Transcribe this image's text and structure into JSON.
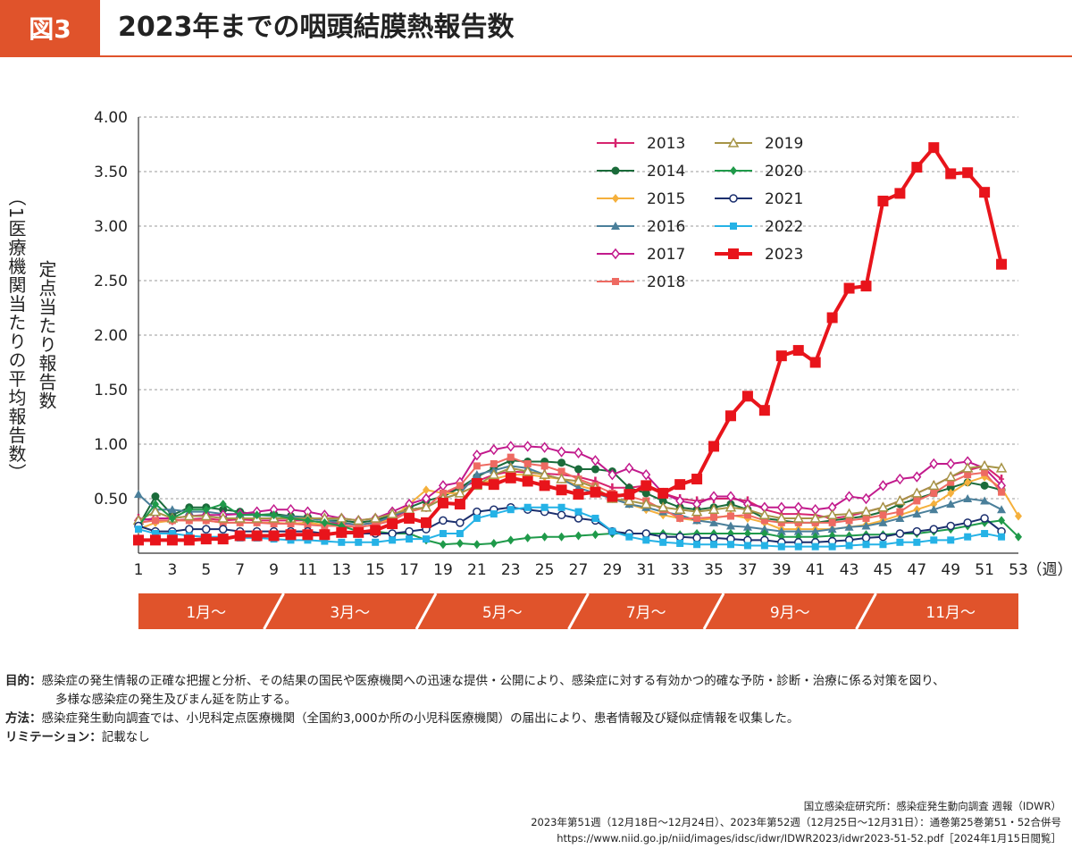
{
  "header": {
    "badge": "図3",
    "title": "2023年までの咽頭結膜熱報告数"
  },
  "colors": {
    "accent": "#e0532b"
  },
  "chart_data": {
    "type": "line",
    "ylabel_outer": "（1医療機関当たりの平均報告数）",
    "ylabel_inner": "定点当たり報告数",
    "x_unit": "（週）",
    "ylim": [
      0,
      4
    ],
    "yticks": [
      "4.00",
      "3.50",
      "3.00",
      "2.50",
      "2.00",
      "1.50",
      "1.00",
      "0.50"
    ],
    "yticks_values": [
      4,
      3.5,
      3,
      2.5,
      2,
      1.5,
      1,
      0.5
    ],
    "xticks": [
      1,
      3,
      5,
      7,
      9,
      11,
      13,
      15,
      17,
      19,
      21,
      23,
      25,
      27,
      29,
      31,
      33,
      35,
      37,
      39,
      41,
      43,
      45,
      47,
      49,
      51,
      53
    ],
    "xlim": [
      1,
      53
    ],
    "months": [
      "1月〜",
      "3月〜",
      "5月〜",
      "7月〜",
      "9月〜",
      "11月〜"
    ],
    "grid": true,
    "legend_position": "top-right",
    "series": [
      {
        "name": "2013",
        "color": "#d6246e",
        "marker": "plus",
        "values": [
          0.32,
          0.3,
          0.3,
          0.31,
          0.32,
          0.3,
          0.31,
          0.3,
          0.3,
          0.3,
          0.3,
          0.28,
          0.27,
          0.26,
          0.28,
          0.32,
          0.4,
          0.42,
          0.55,
          0.6,
          0.66,
          0.72,
          0.75,
          0.74,
          0.73,
          0.72,
          0.7,
          0.66,
          0.6,
          0.6,
          0.62,
          0.55,
          0.5,
          0.48,
          0.5,
          0.5,
          0.48,
          0.4,
          0.36,
          0.36,
          0.35,
          0.32,
          0.34,
          0.38,
          0.42,
          0.48,
          0.55,
          0.62,
          0.7,
          0.76,
          0.8,
          0.68
        ]
      },
      {
        "name": "2014",
        "color": "#1a6b3a",
        "marker": "dot",
        "values": [
          0.25,
          0.52,
          0.35,
          0.42,
          0.42,
          0.4,
          0.38,
          0.35,
          0.36,
          0.34,
          0.33,
          0.3,
          0.3,
          0.28,
          0.3,
          0.35,
          0.42,
          0.48,
          0.52,
          0.6,
          0.7,
          0.78,
          0.85,
          0.84,
          0.84,
          0.83,
          0.77,
          0.77,
          0.75,
          0.6,
          0.55,
          0.48,
          0.42,
          0.4,
          0.42,
          0.45,
          0.4,
          0.32,
          0.3,
          0.28,
          0.28,
          0.3,
          0.32,
          0.34,
          0.38,
          0.45,
          0.5,
          0.55,
          0.6,
          0.65,
          0.62,
          0.58
        ]
      },
      {
        "name": "2015",
        "color": "#f5b03c",
        "marker": "diamond",
        "values": [
          0.22,
          0.28,
          0.3,
          0.3,
          0.3,
          0.28,
          0.28,
          0.28,
          0.28,
          0.27,
          0.28,
          0.26,
          0.25,
          0.24,
          0.26,
          0.32,
          0.45,
          0.58,
          0.55,
          0.55,
          0.62,
          0.68,
          0.72,
          0.72,
          0.7,
          0.68,
          0.62,
          0.58,
          0.5,
          0.45,
          0.4,
          0.35,
          0.32,
          0.3,
          0.32,
          0.35,
          0.32,
          0.28,
          0.22,
          0.22,
          0.22,
          0.22,
          0.24,
          0.26,
          0.3,
          0.35,
          0.4,
          0.45,
          0.55,
          0.65,
          0.7,
          0.6,
          0.34
        ]
      },
      {
        "name": "2016",
        "color": "#4a7f9a",
        "marker": "triangle",
        "values": [
          0.54,
          0.4,
          0.4,
          0.38,
          0.38,
          0.36,
          0.36,
          0.35,
          0.34,
          0.34,
          0.32,
          0.3,
          0.28,
          0.26,
          0.28,
          0.34,
          0.4,
          0.42,
          0.5,
          0.55,
          0.72,
          0.76,
          0.8,
          0.78,
          0.72,
          0.68,
          0.6,
          0.55,
          0.5,
          0.45,
          0.42,
          0.38,
          0.35,
          0.3,
          0.28,
          0.25,
          0.24,
          0.22,
          0.2,
          0.2,
          0.2,
          0.22,
          0.24,
          0.25,
          0.28,
          0.32,
          0.36,
          0.4,
          0.45,
          0.5,
          0.48,
          0.4
        ]
      },
      {
        "name": "2017",
        "color": "#c21a8c",
        "marker": "open-diamond",
        "values": [
          0.3,
          0.32,
          0.32,
          0.34,
          0.35,
          0.35,
          0.36,
          0.38,
          0.4,
          0.4,
          0.38,
          0.35,
          0.32,
          0.3,
          0.32,
          0.38,
          0.45,
          0.5,
          0.62,
          0.65,
          0.9,
          0.95,
          0.98,
          0.98,
          0.97,
          0.93,
          0.92,
          0.85,
          0.72,
          0.78,
          0.72,
          0.55,
          0.48,
          0.45,
          0.52,
          0.52,
          0.45,
          0.42,
          0.42,
          0.42,
          0.4,
          0.42,
          0.52,
          0.5,
          0.62,
          0.68,
          0.7,
          0.82,
          0.82,
          0.84,
          0.78,
          0.62
        ]
      },
      {
        "name": "2018",
        "color": "#ee6a62",
        "marker": "square",
        "values": [
          0.28,
          0.3,
          0.3,
          0.3,
          0.3,
          0.28,
          0.28,
          0.28,
          0.27,
          0.27,
          0.26,
          0.25,
          0.25,
          0.24,
          0.26,
          0.3,
          0.38,
          0.42,
          0.55,
          0.62,
          0.8,
          0.82,
          0.88,
          0.82,
          0.8,
          0.75,
          0.68,
          0.62,
          0.55,
          0.52,
          0.48,
          0.4,
          0.32,
          0.32,
          0.33,
          0.34,
          0.35,
          0.3,
          0.28,
          0.28,
          0.28,
          0.28,
          0.3,
          0.32,
          0.35,
          0.38,
          0.48,
          0.55,
          0.65,
          0.72,
          0.74,
          0.56
        ]
      },
      {
        "name": "2019",
        "color": "#a69446",
        "marker": "open-triangle",
        "values": [
          0.3,
          0.38,
          0.32,
          0.34,
          0.34,
          0.32,
          0.32,
          0.32,
          0.32,
          0.32,
          0.32,
          0.32,
          0.32,
          0.3,
          0.32,
          0.36,
          0.4,
          0.42,
          0.5,
          0.55,
          0.62,
          0.72,
          0.78,
          0.75,
          0.72,
          0.68,
          0.66,
          0.6,
          0.5,
          0.48,
          0.45,
          0.42,
          0.4,
          0.38,
          0.4,
          0.42,
          0.4,
          0.35,
          0.32,
          0.32,
          0.32,
          0.35,
          0.36,
          0.38,
          0.42,
          0.48,
          0.55,
          0.62,
          0.7,
          0.78,
          0.8,
          0.78
        ]
      },
      {
        "name": "2020",
        "color": "#1f9a4a",
        "marker": "diamond",
        "values": [
          0.25,
          0.45,
          0.32,
          0.4,
          0.4,
          0.45,
          0.35,
          0.35,
          0.35,
          0.32,
          0.3,
          0.28,
          0.25,
          0.2,
          0.2,
          0.18,
          0.18,
          0.12,
          0.08,
          0.09,
          0.08,
          0.09,
          0.12,
          0.14,
          0.15,
          0.15,
          0.16,
          0.17,
          0.18,
          0.18,
          0.18,
          0.18,
          0.17,
          0.18,
          0.18,
          0.18,
          0.18,
          0.18,
          0.15,
          0.15,
          0.15,
          0.16,
          0.16,
          0.17,
          0.17,
          0.18,
          0.18,
          0.2,
          0.22,
          0.25,
          0.28,
          0.3,
          0.15
        ]
      },
      {
        "name": "2021",
        "color": "#1b2f6e",
        "marker": "circle",
        "values": [
          0.25,
          0.2,
          0.2,
          0.22,
          0.22,
          0.22,
          0.2,
          0.2,
          0.2,
          0.2,
          0.2,
          0.18,
          0.18,
          0.18,
          0.18,
          0.18,
          0.2,
          0.22,
          0.3,
          0.28,
          0.38,
          0.4,
          0.42,
          0.4,
          0.38,
          0.35,
          0.32,
          0.3,
          0.2,
          0.18,
          0.18,
          0.15,
          0.15,
          0.14,
          0.14,
          0.13,
          0.12,
          0.12,
          0.1,
          0.1,
          0.1,
          0.11,
          0.12,
          0.14,
          0.15,
          0.18,
          0.2,
          0.22,
          0.25,
          0.28,
          0.32,
          0.2
        ]
      },
      {
        "name": "2022",
        "color": "#25b2e6",
        "marker": "square",
        "values": [
          0.22,
          0.18,
          0.18,
          0.16,
          0.15,
          0.15,
          0.14,
          0.14,
          0.13,
          0.12,
          0.12,
          0.11,
          0.1,
          0.1,
          0.1,
          0.12,
          0.13,
          0.13,
          0.18,
          0.18,
          0.32,
          0.36,
          0.4,
          0.42,
          0.42,
          0.42,
          0.38,
          0.32,
          0.2,
          0.15,
          0.12,
          0.1,
          0.09,
          0.08,
          0.08,
          0.08,
          0.07,
          0.07,
          0.06,
          0.06,
          0.06,
          0.06,
          0.07,
          0.08,
          0.08,
          0.1,
          0.1,
          0.12,
          0.12,
          0.15,
          0.18,
          0.15
        ]
      },
      {
        "name": "2023",
        "color": "#e8141b",
        "marker": "bigsquare",
        "values": [
          0.12,
          0.12,
          0.12,
          0.12,
          0.13,
          0.13,
          0.16,
          0.16,
          0.16,
          0.17,
          0.17,
          0.17,
          0.19,
          0.19,
          0.21,
          0.27,
          0.32,
          0.28,
          0.46,
          0.45,
          0.64,
          0.63,
          0.69,
          0.66,
          0.62,
          0.58,
          0.54,
          0.56,
          0.52,
          0.54,
          0.62,
          0.55,
          0.63,
          0.68,
          0.98,
          1.26,
          1.44,
          1.31,
          1.81,
          1.86,
          1.75,
          2.16,
          2.43,
          2.45,
          3.23,
          3.3,
          3.54,
          3.72,
          3.48,
          3.49,
          3.31,
          2.65
        ]
      }
    ]
  },
  "notes": [
    {
      "key": "目的：",
      "text": "感染症の発生情報の正確な把握と分析、その結果の国民や医療機関への迅速な提供・公開により、感染症に対する有効かつ的確な予防・診断・治療に係る対策を図り、",
      "text2": "多様な感染症の発生及びまん延を防止する。"
    },
    {
      "key": "方法：",
      "text": "感染症発生動向調査では、小児科定点医療機関（全国約3,000か所の小児科医療機関）の届出により、患者情報及び疑似症情報を収集した。"
    },
    {
      "key": "リミテーション：",
      "text": "記載なし"
    }
  ],
  "source": [
    "国立感染症研究所：感染症発生動向調査 週報（IDWR）",
    "2023年第51週（12月18日〜12月24日）、2023年第52週（12月25日〜12月31日）：通巻第25巻第51・52合併号",
    "https://www.niid.go.jp/niid/images/idsc/idwr/IDWR2023/idwr2023-51-52.pdf［2024年1月15日閲覧］"
  ]
}
